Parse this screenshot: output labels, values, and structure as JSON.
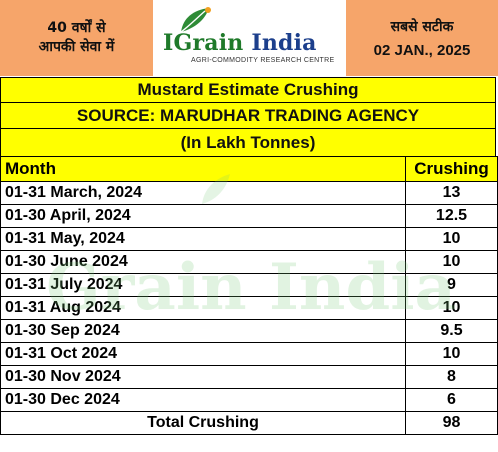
{
  "header": {
    "left_line1": "40 वर्षों से",
    "left_line2": "आपकी सेवा में",
    "logo_part1": "IGrain",
    "logo_part2": "India",
    "logo_tagline": "AGRI-COMMODITY RESEARCH CENTRE",
    "right_line1": "सबसे सटीक",
    "date": "02 JAN., 2025"
  },
  "titles": {
    "title": "Mustard Estimate Crushing",
    "source": "SOURCE: MARUDHAR TRADING AGENCY",
    "unit": "(In Lakh Tonnes)"
  },
  "table": {
    "columns": [
      "Month",
      "Crushing"
    ],
    "rows": [
      [
        "01-31 March, 2024",
        "13"
      ],
      [
        "01-30 April, 2024",
        "12.5"
      ],
      [
        "01-31 May, 2024",
        "10"
      ],
      [
        "01-30 June 2024",
        "10"
      ],
      [
        "01-31 July 2024",
        "9"
      ],
      [
        "01-31 Aug 2024",
        "10"
      ],
      [
        "01-30 Sep 2024",
        "9.5"
      ],
      [
        "01-31 Oct 2024",
        "10"
      ],
      [
        "01-30 Nov 2024",
        "8"
      ],
      [
        "01-30 Dec 2024",
        "6"
      ]
    ],
    "total_label": "Total Crushing",
    "total_value": "98"
  },
  "watermark": "Grain India",
  "colors": {
    "header_band": "#f6a56a",
    "highlight": "#ffff00",
    "logo_green": "#1f7a2a",
    "logo_blue": "#1c3f8c"
  }
}
